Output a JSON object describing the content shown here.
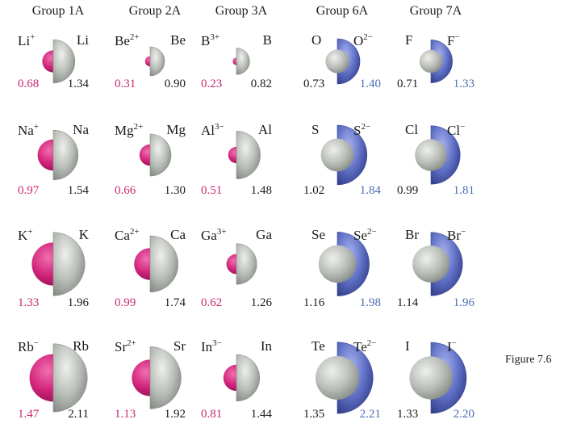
{
  "caption": "Figure 7.6",
  "colors": {
    "cation": "#d2237a",
    "neutral_atom": "#b9bdb8",
    "anion": "#5f6fc4",
    "cation_label": "#c8286e",
    "anion_label": "#4a6fb0"
  },
  "groups": [
    {
      "name": "Group 1A",
      "type": "metal",
      "rows": [
        {
          "ion_base": "Li",
          "ion_charge": "+",
          "atom": "Li",
          "ion_radius": "0.68",
          "atom_radius": "1.34"
        },
        {
          "ion_base": "Na",
          "ion_charge": "+",
          "atom": "Na",
          "ion_radius": "0.97",
          "atom_radius": "1.54"
        },
        {
          "ion_base": "K",
          "ion_charge": "+",
          "atom": "K",
          "ion_radius": "1.33",
          "atom_radius": "1.96"
        },
        {
          "ion_base": "Rb",
          "ion_charge": "−",
          "atom": "Rb",
          "ion_radius": "1.47",
          "atom_radius": "2.11"
        }
      ]
    },
    {
      "name": "Group 2A",
      "type": "metal",
      "rows": [
        {
          "ion_base": "Be",
          "ion_charge": "2+",
          "atom": "Be",
          "ion_radius": "0.31",
          "atom_radius": "0.90"
        },
        {
          "ion_base": "Mg",
          "ion_charge": "2+",
          "atom": "Mg",
          "ion_radius": "0.66",
          "atom_radius": "1.30"
        },
        {
          "ion_base": "Ca",
          "ion_charge": "2+",
          "atom": "Ca",
          "ion_radius": "0.99",
          "atom_radius": "1.74"
        },
        {
          "ion_base": "Sr",
          "ion_charge": "2+",
          "atom": "Sr",
          "ion_radius": "1.13",
          "atom_radius": "1.92"
        }
      ]
    },
    {
      "name": "Group 3A",
      "type": "metal",
      "rows": [
        {
          "ion_base": "B",
          "ion_charge": "3+",
          "atom": "B",
          "ion_radius": "0.23",
          "atom_radius": "0.82"
        },
        {
          "ion_base": "Al",
          "ion_charge": "3−",
          "atom": "Al",
          "ion_radius": "0.51",
          "atom_radius": "1.48"
        },
        {
          "ion_base": "Ga",
          "ion_charge": "3+",
          "atom": "Ga",
          "ion_radius": "0.62",
          "atom_radius": "1.26"
        },
        {
          "ion_base": "In",
          "ion_charge": "3−",
          "atom": "In",
          "ion_radius": "0.81",
          "atom_radius": "1.44"
        }
      ]
    },
    {
      "name": "Group 6A",
      "type": "nonmetal",
      "rows": [
        {
          "atom": "O",
          "ion_base": "O",
          "ion_charge": "2−",
          "atom_radius": "0.73",
          "ion_radius": "1.40"
        },
        {
          "atom": "S",
          "ion_base": "S",
          "ion_charge": "2−",
          "atom_radius": "1.02",
          "ion_radius": "1.84"
        },
        {
          "atom": "Se",
          "ion_base": "Se",
          "ion_charge": "2−",
          "atom_radius": "1.16",
          "ion_radius": "1.98"
        },
        {
          "atom": "Te",
          "ion_base": "Te",
          "ion_charge": "2−",
          "atom_radius": "1.35",
          "ion_radius": "2.21"
        }
      ]
    },
    {
      "name": "Group 7A",
      "type": "nonmetal",
      "rows": [
        {
          "atom": "F",
          "ion_base": "F",
          "ion_charge": "−",
          "atom_radius": "0.71",
          "ion_radius": "1.33"
        },
        {
          "atom": "Cl",
          "ion_base": "Cl",
          "ion_charge": "−",
          "atom_radius": "0.99",
          "ion_radius": "1.81"
        },
        {
          "atom": "Br",
          "ion_base": "Br",
          "ion_charge": "−",
          "atom_radius": "1.14",
          "ion_radius": "1.96"
        },
        {
          "atom": "I",
          "ion_base": "I",
          "ion_charge": "−",
          "atom_radius": "1.33",
          "ion_radius": "2.20"
        }
      ]
    }
  ]
}
